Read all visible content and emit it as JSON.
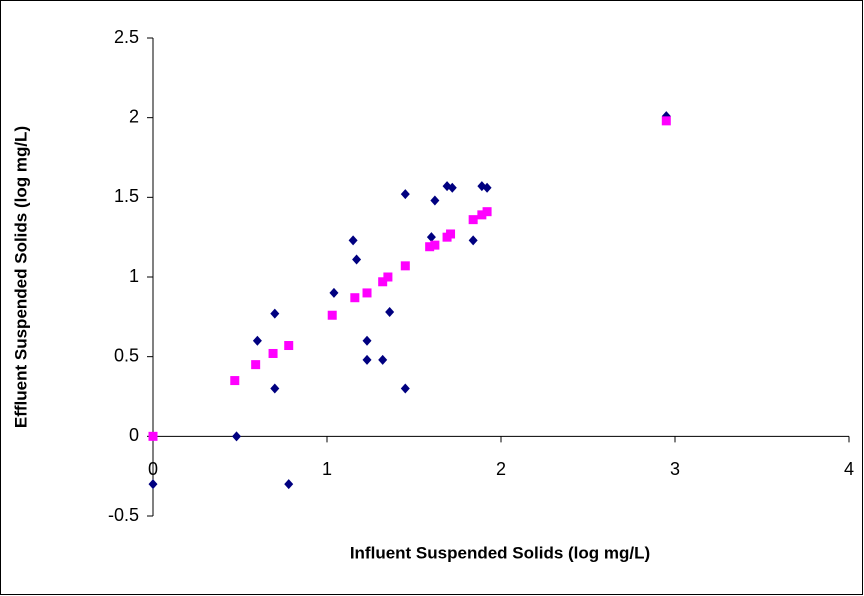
{
  "chart_data": {
    "type": "scatter",
    "xlabel": "Influent Suspended Solids (log mg/L)",
    "ylabel": "Effluent Suspended Solids (log mg/L)",
    "xlim": [
      0,
      4
    ],
    "xticks": [
      0,
      1,
      2,
      3,
      4
    ],
    "ylim": [
      -0.5,
      2.5
    ],
    "yticks": [
      -0.5,
      0,
      0.5,
      1,
      1.5,
      2,
      2.5
    ],
    "series": [
      {
        "color": "#000080",
        "marker": "diamond",
        "x": [
          0,
          0.48,
          0.6,
          0.7,
          0.7,
          0.78,
          1.04,
          1.15,
          1.17,
          1.23,
          1.23,
          1.32,
          1.36,
          1.45,
          1.45,
          1.6,
          1.62,
          1.69,
          1.72,
          1.84,
          1.89,
          1.92,
          2.95
        ],
        "values": [
          -0.3,
          0,
          0.6,
          0.77,
          0.3,
          -0.3,
          0.9,
          1.23,
          1.11,
          0.6,
          0.48,
          0.48,
          0.78,
          1.52,
          0.3,
          1.25,
          1.48,
          1.57,
          1.56,
          1.23,
          1.57,
          1.56,
          2.01
        ]
      },
      {
        "color": "#ff00ff",
        "marker": "square",
        "x": [
          0,
          0.47,
          0.59,
          0.69,
          0.78,
          1.03,
          1.16,
          1.23,
          1.32,
          1.35,
          1.45,
          1.59,
          1.62,
          1.69,
          1.71,
          1.84,
          1.89,
          1.92,
          2.95
        ],
        "values": [
          0,
          0.35,
          0.45,
          0.52,
          0.57,
          0.76,
          0.87,
          0.9,
          0.97,
          1.0,
          1.07,
          1.19,
          1.2,
          1.25,
          1.27,
          1.36,
          1.39,
          1.41,
          1.98
        ]
      }
    ]
  }
}
